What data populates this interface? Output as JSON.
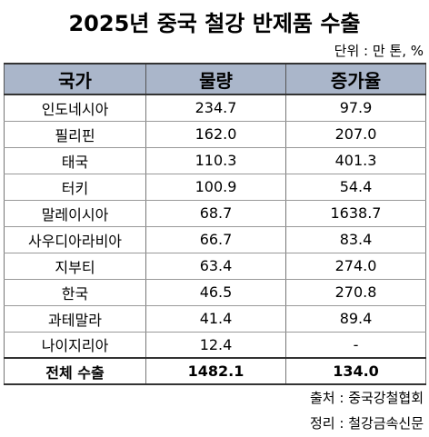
{
  "title": "2025년 중국 철강 반제품 수출",
  "unit": "단위 : 만 톤, %",
  "headers": [
    "국가",
    "물량",
    "증가율"
  ],
  "rows": [
    [
      "인도네시아",
      "234.7",
      "97.9"
    ],
    [
      "필리핀",
      "162.0",
      "207.0"
    ],
    [
      "태국",
      "110.3",
      "401.3"
    ],
    [
      "터키",
      "100.9",
      "54.4"
    ],
    [
      "말레이시아",
      "68.7",
      "1638.7"
    ],
    [
      "사우디아라비아",
      "66.7",
      "83.4"
    ],
    [
      "지부티",
      "63.4",
      "274.0"
    ],
    [
      "한국",
      "46.5",
      "270.8"
    ],
    [
      "과테말라",
      "41.4",
      "89.4"
    ],
    [
      "나이지리아",
      "12.4",
      "-"
    ]
  ],
  "total": [
    "전체 수출",
    "1482.1",
    "134.0"
  ],
  "source_line1": "출처 : 중국강철협회",
  "source_line2": "정리 : 철강금속신문"
}
